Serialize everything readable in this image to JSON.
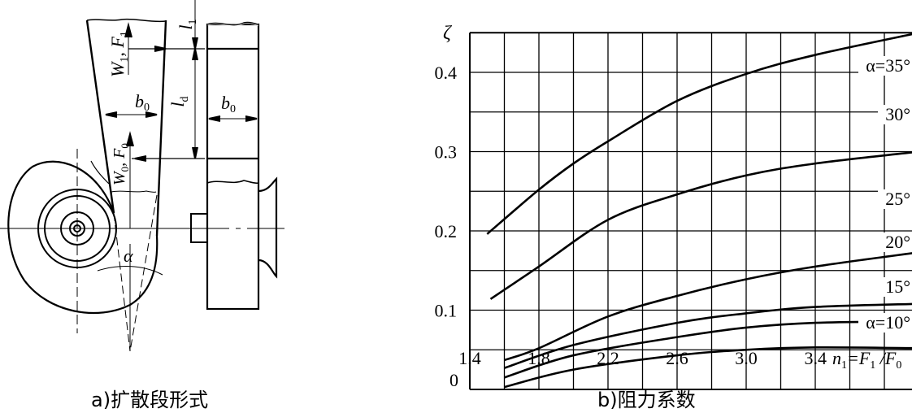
{
  "captions": {
    "a": "a)扩散段形式",
    "b": "b)阻力系数"
  },
  "diagram": {
    "l1": {
      "main": "l",
      "sub": "1"
    },
    "ld": {
      "main": "l",
      "sub": "d"
    },
    "b0_left": {
      "main": "b",
      "sub": "0"
    },
    "b0_right": {
      "main": "b",
      "sub": "0"
    },
    "w1f1": {
      "w": "W",
      "wsub": "1",
      "sep": ", F",
      "fsub": "1"
    },
    "w0f0": {
      "w": "W",
      "wsub": "0",
      "sep": ", F",
      "fsub": "0"
    },
    "alpha": "α"
  },
  "chart_data": {
    "type": "line",
    "title": "",
    "ylabel": "ζ",
    "xlabel": {
      "n": "n",
      "nsub": "1",
      "eq": "=F",
      "f1sub": "1",
      "slash": " /F",
      "f0sub": "0"
    },
    "xlim": [
      1.4,
      4.0
    ],
    "ylim": [
      0,
      0.45
    ],
    "grid": true,
    "x_ticks": [
      "1.4",
      "1.8",
      "2.2",
      "2.6",
      "3.0",
      "3.4"
    ],
    "x_tick_values": [
      1.4,
      1.8,
      2.2,
      2.6,
      3.0,
      3.4
    ],
    "y_ticks": [
      "0",
      "0.1",
      "0.2",
      "0.3",
      "0.4"
    ],
    "y_tick_values": [
      0,
      0.1,
      0.2,
      0.3,
      0.4
    ],
    "series": [
      {
        "name": "α=35°",
        "x": [
          1.5,
          1.8,
          2.0,
          2.2,
          2.6,
          3.0,
          3.4,
          4.0
        ],
        "y": [
          0.196,
          0.252,
          0.285,
          0.313,
          0.364,
          0.398,
          0.422,
          0.45
        ]
      },
      {
        "name": "30°",
        "x": [
          1.52,
          1.8,
          2.2,
          2.6,
          3.0,
          3.4,
          4.0
        ],
        "y": [
          0.114,
          0.155,
          0.214,
          0.246,
          0.27,
          0.285,
          0.3
        ]
      },
      {
        "name": "25°",
        "x": [
          1.6,
          1.8,
          2.2,
          2.6,
          3.0,
          3.4,
          4.0
        ],
        "y": [
          0.037,
          0.052,
          0.092,
          0.118,
          0.139,
          0.155,
          0.173
        ]
      },
      {
        "name": "20°",
        "x": [
          1.6,
          2.0,
          2.6,
          3.0,
          3.4,
          4.0
        ],
        "y": [
          0.027,
          0.056,
          0.084,
          0.096,
          0.104,
          0.108
        ]
      },
      {
        "name": "15°",
        "x": [
          1.6,
          2.0,
          2.6,
          3.0,
          3.4,
          4.0
        ],
        "y": [
          0.015,
          0.043,
          0.066,
          0.078,
          0.084,
          0.086
        ]
      },
      {
        "name": "α=10°",
        "x": [
          1.6,
          2.0,
          2.6,
          3.0,
          3.4,
          4.0
        ],
        "y": [
          0.003,
          0.025,
          0.043,
          0.05,
          0.053,
          0.052
        ]
      }
    ]
  }
}
